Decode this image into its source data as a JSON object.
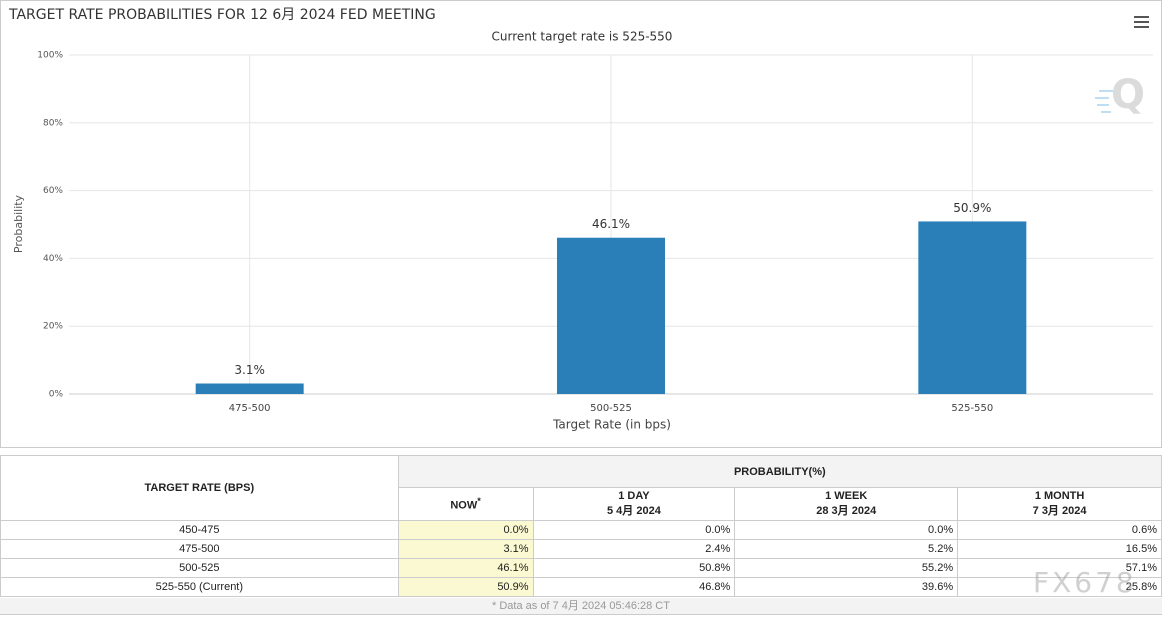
{
  "chart_data": {
    "type": "bar",
    "title": "TARGET RATE PROBABILITIES FOR 12 6月 2024 FED MEETING",
    "subtitle": "Current target rate is 525-550",
    "x_label": "Target Rate (in bps)",
    "y_label": "Probability",
    "categories": [
      "475-500",
      "500-525",
      "525-550"
    ],
    "values": [
      3.1,
      46.1,
      50.9
    ],
    "value_labels": [
      "3.1%",
      "46.1%",
      "50.9%"
    ],
    "color": "#2b7fb9",
    "ylim": [
      0,
      100
    ],
    "yticks": [
      {
        "value": 0,
        "label": "0%"
      },
      {
        "value": 20,
        "label": "20%"
      },
      {
        "value": 40,
        "label": "40%"
      },
      {
        "value": 60,
        "label": "60%"
      },
      {
        "value": 80,
        "label": "80%"
      },
      {
        "value": 100,
        "label": "100%"
      }
    ],
    "grid": true
  },
  "table": {
    "row_header": "TARGET RATE (BPS)",
    "group_header": "PROBABILITY(%)",
    "columns": [
      {
        "label": "NOW",
        "note": "*"
      },
      {
        "label": "1 DAY",
        "date": "5 4月 2024"
      },
      {
        "label": "1 WEEK",
        "date": "28 3月 2024"
      },
      {
        "label": "1 MONTH",
        "date": "7 3月 2024"
      }
    ],
    "rows": [
      [
        "450-475",
        "0.0%",
        "0.0%",
        "0.0%",
        "0.6%"
      ],
      [
        "475-500",
        "3.1%",
        "2.4%",
        "5.2%",
        "16.5%"
      ],
      [
        "500-525",
        "46.1%",
        "50.8%",
        "55.2%",
        "57.1%"
      ],
      [
        "525-550 (Current)",
        "50.9%",
        "46.8%",
        "39.6%",
        "25.8%"
      ]
    ],
    "footnote": "* Data as of 7 4月 2024 05:46:28 CT"
  },
  "watermark": "FX678"
}
